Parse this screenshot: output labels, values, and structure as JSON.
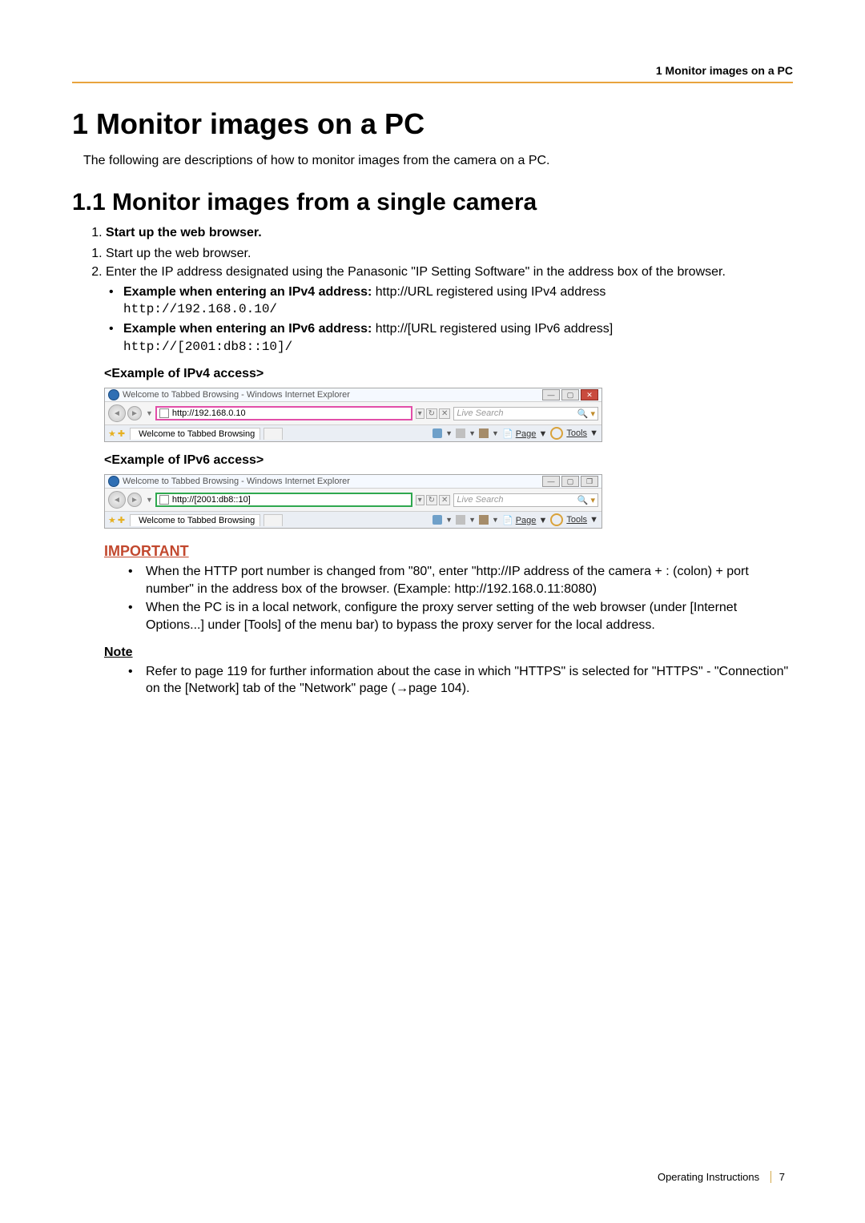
{
  "running_header": "1 Monitor images on a PC",
  "h1": "1   Monitor images on a PC",
  "intro": "The following are descriptions of how to monitor images from the camera on a PC.",
  "h2": "1.1  Monitor images from a single camera",
  "step1": "Start up the web browser.",
  "step2": "Enter the IP address designated using the Panasonic \"IP Setting Software\" in the address box of the browser.",
  "ipv4_label": "Example when entering an IPv4 address:",
  "ipv4_text": " http://URL registered using IPv4 address",
  "ipv4_code": "http://192.168.0.10/",
  "ipv6_label": "Example when entering an IPv6 address:",
  "ipv6_text": " http://[URL registered using IPv6 address]",
  "ipv6_code": "http://[2001:db8::10]/",
  "ex_ipv4": "<Example of IPv4 access>",
  "ex_ipv6": "<Example of IPv6 access>",
  "shot": {
    "ipv4_url": "http://192.168.0.10",
    "ipv6_url": "http://[2001:db8::10]",
    "title": "Welcome to Tabbed Browsing - Windows Internet Explorer",
    "tab": "Welcome to Tabbed Browsing",
    "search": "Live Search",
    "page": "Page",
    "tools": "Tools"
  },
  "important_label": "IMPORTANT",
  "important1": "When the HTTP port number is changed from \"80\", enter \"http://IP address of the camera + : (colon) + port number\" in the address box of the browser. (Example: http://192.168.0.11:8080)",
  "important2": "When the PC is in a local network, configure the proxy server setting of the web browser (under [Internet Options...] under [Tools] of the menu bar) to bypass the proxy server for the local address.",
  "note_label": "Note",
  "note1": "Refer to page 119 for further information about the case in which \"HTTPS\" is selected for \"HTTPS\" - \"Connection\" on the [Network] tab of the \"Network\" page (→page 104).",
  "footer_text": "Operating Instructions",
  "footer_page": "7"
}
